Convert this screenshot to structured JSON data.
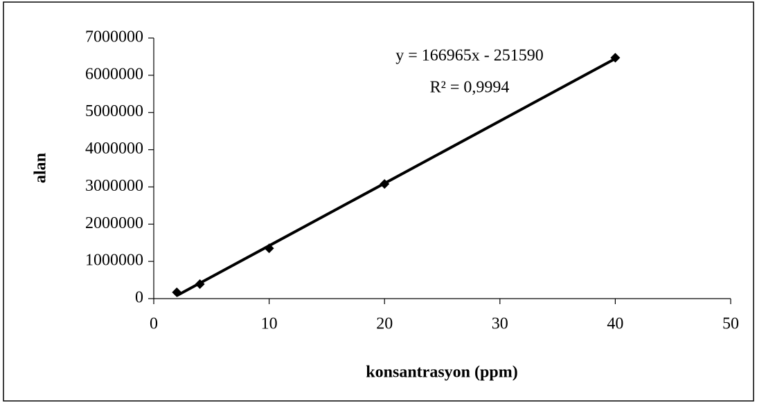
{
  "chart_data": {
    "type": "scatter",
    "x_label": "konsantrasyon (ppm)",
    "y_label": "alan",
    "annotations": [
      "y = 166965x - 251590",
      "R² = 0,9994"
    ],
    "series": [
      {
        "color": "#000000",
        "x": [
          2,
          4,
          10,
          20,
          40
        ],
        "values": [
          170000,
          390000,
          1350000,
          3080000,
          6470000
        ]
      }
    ],
    "trendline": true,
    "xlim": [
      0,
      50
    ],
    "xticks": [
      0,
      10,
      20,
      30,
      40,
      50
    ],
    "ylim": [
      0,
      7000000
    ],
    "yticks": [
      0,
      1000000,
      2000000,
      3000000,
      4000000,
      5000000,
      6000000,
      7000000
    ],
    "grid": false
  }
}
